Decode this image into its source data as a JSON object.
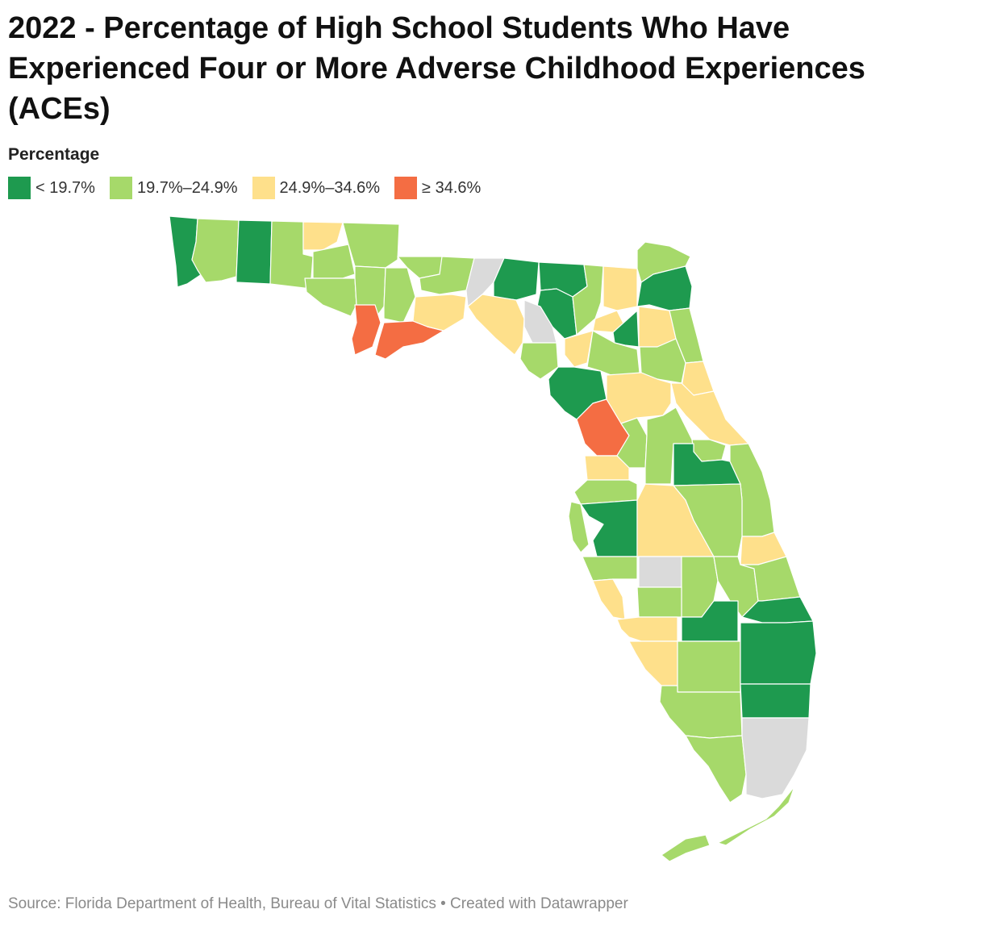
{
  "title": "2022 - Percentage of High School Students Who Have Experienced Four or More Adverse Childhood Experiences (ACEs)",
  "legend": {
    "title": "Percentage",
    "items": [
      {
        "label": "< 19.7%",
        "color": "#1e9a4f"
      },
      {
        "label": "19.7%–24.9%",
        "color": "#a6d96a"
      },
      {
        "label": "24.9%–34.6%",
        "color": "#fee08b"
      },
      {
        "label": "≥ 34.6%",
        "color": "#f46d43"
      }
    ],
    "no_data_color": "#dadada"
  },
  "footer": {
    "source": "Source: Florida Department of Health, Bureau of Vital Statistics • Created with Datawrapper"
  }
}
